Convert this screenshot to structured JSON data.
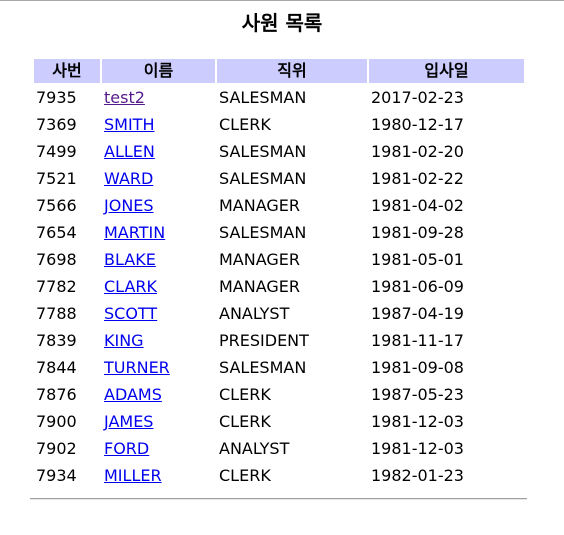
{
  "page": {
    "title": "사원 목록"
  },
  "table": {
    "headers": {
      "empno": "사번",
      "ename": "이름",
      "job": "직위",
      "hiredate": "입사일"
    },
    "rows": [
      {
        "empno": "7935",
        "ename": "test2",
        "job": "SALESMAN",
        "hiredate": "2017-02-23"
      },
      {
        "empno": "7369",
        "ename": "SMITH",
        "job": "CLERK",
        "hiredate": "1980-12-17"
      },
      {
        "empno": "7499",
        "ename": "ALLEN",
        "job": "SALESMAN",
        "hiredate": "1981-02-20"
      },
      {
        "empno": "7521",
        "ename": "WARD",
        "job": "SALESMAN",
        "hiredate": "1981-02-22"
      },
      {
        "empno": "7566",
        "ename": "JONES",
        "job": "MANAGER",
        "hiredate": "1981-04-02"
      },
      {
        "empno": "7654",
        "ename": "MARTIN",
        "job": "SALESMAN",
        "hiredate": "1981-09-28"
      },
      {
        "empno": "7698",
        "ename": "BLAKE",
        "job": "MANAGER",
        "hiredate": "1981-05-01"
      },
      {
        "empno": "7782",
        "ename": "CLARK",
        "job": "MANAGER",
        "hiredate": "1981-06-09"
      },
      {
        "empno": "7788",
        "ename": "SCOTT",
        "job": "ANALYST",
        "hiredate": "1987-04-19"
      },
      {
        "empno": "7839",
        "ename": "KING",
        "job": "PRESIDENT",
        "hiredate": "1981-11-17"
      },
      {
        "empno": "7844",
        "ename": "TURNER",
        "job": "SALESMAN",
        "hiredate": "1981-09-08"
      },
      {
        "empno": "7876",
        "ename": "ADAMS",
        "job": "CLERK",
        "hiredate": "1987-05-23"
      },
      {
        "empno": "7900",
        "ename": "JAMES",
        "job": "CLERK",
        "hiredate": "1981-12-03"
      },
      {
        "empno": "7902",
        "ename": "FORD",
        "job": "ANALYST",
        "hiredate": "1981-12-03"
      },
      {
        "empno": "7934",
        "ename": "MILLER",
        "job": "CLERK",
        "hiredate": "1982-01-23"
      }
    ]
  },
  "colors": {
    "header_background": "#ccccff",
    "link": "#0000ee",
    "visited_link": "#551a8b"
  }
}
